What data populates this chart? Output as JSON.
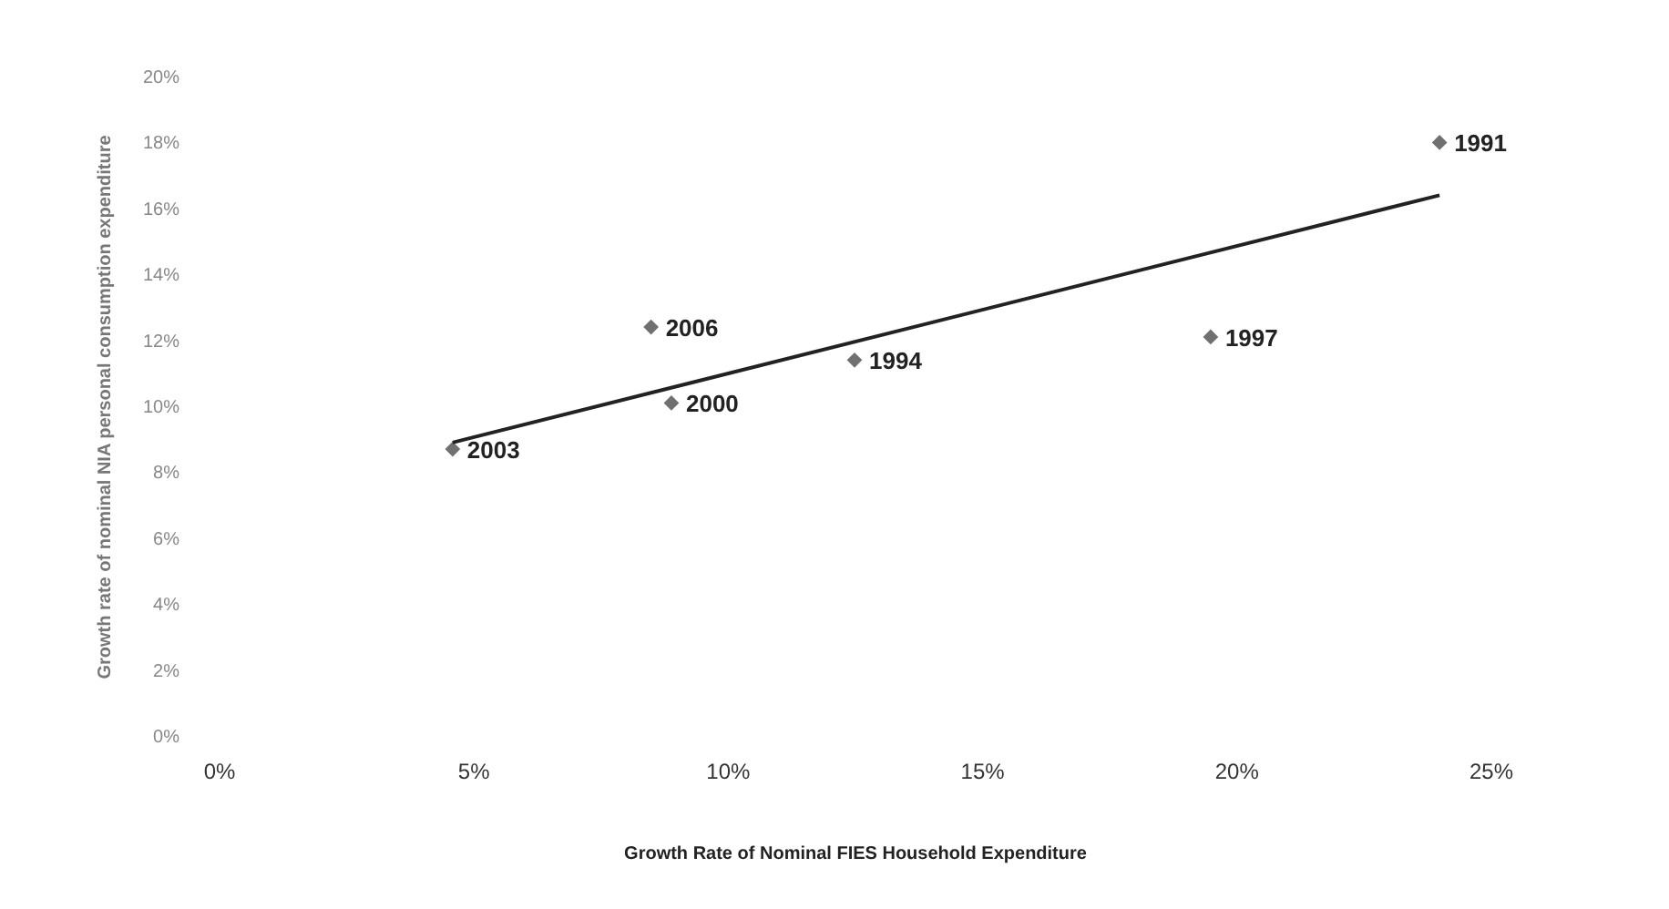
{
  "chart_data": {
    "type": "scatter",
    "xlabel": "Growth Rate of Nominal FIES Household Expenditure",
    "ylabel": "Growth rate of nominal NIA personal consumption expenditure",
    "x": [
      4.6,
      8.5,
      8.9,
      12.5,
      19.5,
      24.0
    ],
    "series": [
      {
        "color": "#333333",
        "marker": "diamond",
        "values": [
          8.7,
          12.4,
          10.1,
          11.4,
          12.1,
          18.0
        ]
      },
      {
        "type": "line",
        "color": "#222222",
        "x": [
          4.6,
          24.0
        ],
        "values": [
          8.9,
          16.4
        ]
      }
    ],
    "annotations": [
      {
        "text": "2003",
        "x": 4.6,
        "y": 8.7
      },
      {
        "text": "2006",
        "x": 8.5,
        "y": 12.4
      },
      {
        "text": "2000",
        "x": 8.9,
        "y": 10.1
      },
      {
        "text": "1994",
        "x": 12.5,
        "y": 11.4
      },
      {
        "text": "1997",
        "x": 19.5,
        "y": 12.1
      },
      {
        "text": "1991",
        "x": 24.0,
        "y": 18.0
      }
    ],
    "xlim": [
      0,
      25
    ],
    "ylim": [
      0,
      20
    ],
    "xticks": [
      {
        "value": 0,
        "label": "0%"
      },
      {
        "value": 5,
        "label": "5%"
      },
      {
        "value": 10,
        "label": "10%"
      },
      {
        "value": 15,
        "label": "15%"
      },
      {
        "value": 20,
        "label": "20%"
      },
      {
        "value": 25,
        "label": "25%"
      }
    ],
    "yticks": [
      {
        "value": 0,
        "label": "0%"
      },
      {
        "value": 2,
        "label": "2%"
      },
      {
        "value": 4,
        "label": "4%"
      },
      {
        "value": 6,
        "label": "6%"
      },
      {
        "value": 8,
        "label": "8%"
      },
      {
        "value": 10,
        "label": "10%"
      },
      {
        "value": 12,
        "label": "12%"
      },
      {
        "value": 14,
        "label": "14%"
      },
      {
        "value": 16,
        "label": "16%"
      },
      {
        "value": 18,
        "label": "18%"
      },
      {
        "value": 20,
        "label": "20%"
      }
    ],
    "grid": false
  }
}
